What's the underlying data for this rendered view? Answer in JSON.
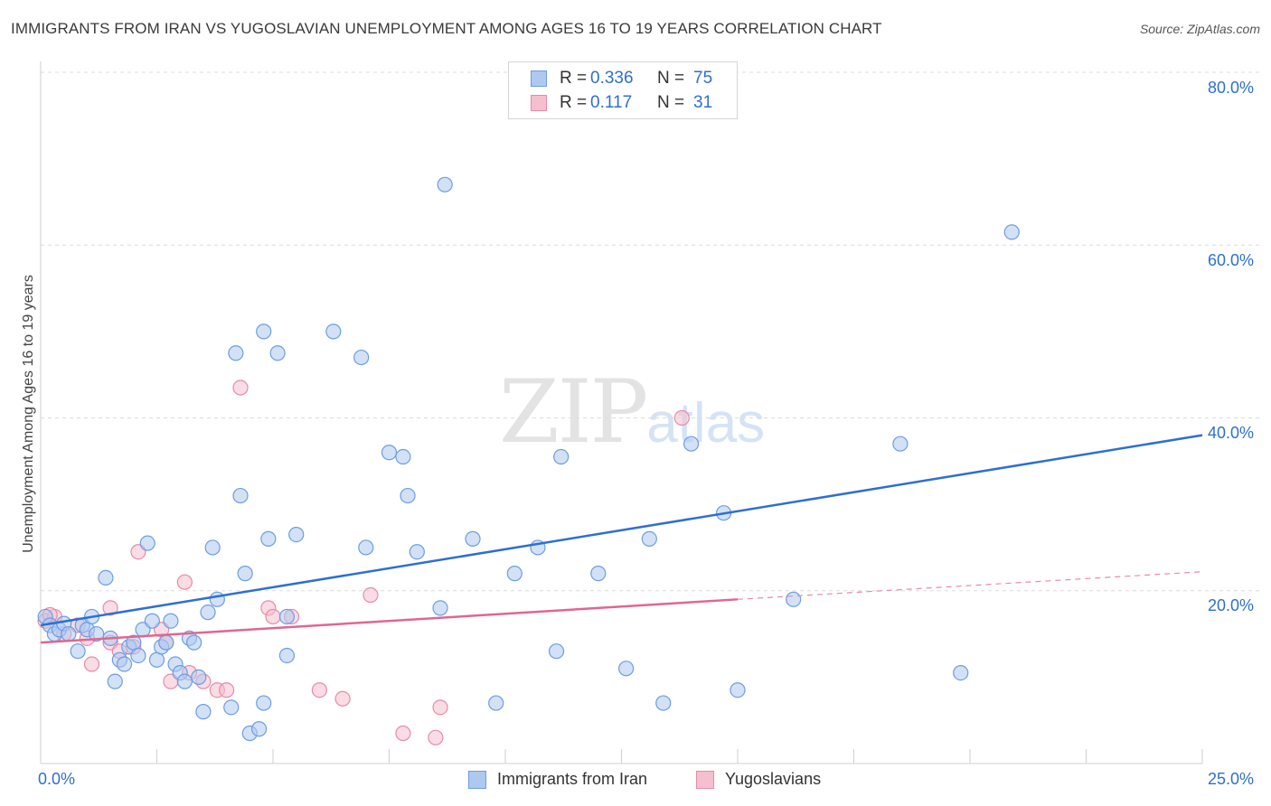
{
  "title": "IMMIGRANTS FROM IRAN VS YUGOSLAVIAN UNEMPLOYMENT AMONG AGES 16 TO 19 YEARS CORRELATION CHART",
  "source": "Source: ZipAtlas.com",
  "watermark": {
    "zip": "ZIP",
    "atlas": "atlas"
  },
  "colors": {
    "blue_fill": "#aec9f0",
    "blue_stroke": "#6b9ee0",
    "blue_line": "#2e6fd1",
    "pink_fill": "#f6bfd0",
    "pink_stroke": "#e88aa8",
    "pink_line": "#e2668f",
    "grid": "#dcdcdc",
    "axis_text": "#2e6fd1"
  },
  "legend": {
    "rows": [
      {
        "r_label": "R =",
        "r_value": "0.336",
        "n_label": "N =",
        "n_value": "75"
      },
      {
        "r_label": "R =",
        "r_value": "0.117",
        "n_label": "N =",
        "n_value": "31"
      }
    ]
  },
  "bottom_legend": {
    "series1": "Immigrants from Iran",
    "series2": "Yugoslavians"
  },
  "axis": {
    "x_min_label": "0.0%",
    "x_max_label": "25.0%",
    "y_tick_labels": [
      "80.0%",
      "60.0%",
      "40.0%",
      "20.0%"
    ]
  },
  "chart_data": {
    "type": "scatter",
    "title": "IMMIGRANTS FROM IRAN VS YUGOSLAVIAN UNEMPLOYMENT AMONG AGES 16 TO 19 YEARS CORRELATION CHART",
    "xlabel": "",
    "ylabel": "Unemployment Among Ages 16 to 19 years",
    "xlim": [
      0,
      25
    ],
    "ylim": [
      0,
      80
    ],
    "y_ticks": [
      20,
      40,
      60,
      80
    ],
    "series": [
      {
        "name": "Immigrants from Iran",
        "points": [
          [
            0.1,
            17.0
          ],
          [
            0.2,
            16.0
          ],
          [
            0.3,
            15.0
          ],
          [
            0.4,
            15.5
          ],
          [
            0.5,
            16.2
          ],
          [
            0.6,
            15.0
          ],
          [
            0.8,
            13.0
          ],
          [
            0.9,
            16.0
          ],
          [
            1.0,
            15.5
          ],
          [
            1.1,
            17.0
          ],
          [
            1.2,
            15.0
          ],
          [
            1.4,
            21.5
          ],
          [
            1.5,
            14.5
          ],
          [
            1.6,
            9.5
          ],
          [
            1.7,
            12.0
          ],
          [
            1.8,
            11.5
          ],
          [
            1.9,
            13.5
          ],
          [
            2.0,
            14.0
          ],
          [
            2.1,
            12.5
          ],
          [
            2.2,
            15.5
          ],
          [
            2.3,
            25.5
          ],
          [
            2.4,
            16.5
          ],
          [
            2.5,
            12.0
          ],
          [
            2.6,
            13.5
          ],
          [
            2.7,
            14.0
          ],
          [
            2.8,
            16.5
          ],
          [
            2.9,
            11.5
          ],
          [
            3.0,
            10.5
          ],
          [
            3.1,
            9.5
          ],
          [
            3.2,
            14.5
          ],
          [
            3.3,
            14.0
          ],
          [
            3.4,
            10.0
          ],
          [
            3.5,
            6.0
          ],
          [
            3.6,
            17.5
          ],
          [
            3.7,
            25.0
          ],
          [
            3.8,
            19.0
          ],
          [
            4.1,
            6.5
          ],
          [
            4.2,
            47.5
          ],
          [
            4.3,
            31.0
          ],
          [
            4.4,
            22.0
          ],
          [
            4.5,
            3.5
          ],
          [
            4.7,
            4.0
          ],
          [
            4.8,
            7.0
          ],
          [
            4.8,
            50.0
          ],
          [
            4.9,
            26.0
          ],
          [
            5.1,
            47.5
          ],
          [
            5.3,
            12.5
          ],
          [
            5.3,
            17.0
          ],
          [
            5.5,
            26.5
          ],
          [
            6.3,
            50.0
          ],
          [
            6.9,
            47.0
          ],
          [
            7.0,
            25.0
          ],
          [
            7.5,
            36.0
          ],
          [
            7.8,
            35.5
          ],
          [
            7.9,
            31.0
          ],
          [
            8.1,
            24.5
          ],
          [
            8.6,
            18.0
          ],
          [
            8.7,
            67.0
          ],
          [
            9.3,
            26.0
          ],
          [
            9.8,
            7.0
          ],
          [
            10.2,
            22.0
          ],
          [
            10.7,
            25.0
          ],
          [
            11.1,
            13.0
          ],
          [
            11.2,
            35.5
          ],
          [
            12.0,
            22.0
          ],
          [
            12.6,
            11.0
          ],
          [
            13.1,
            26.0
          ],
          [
            13.4,
            7.0
          ],
          [
            14.0,
            37.0
          ],
          [
            14.7,
            29.0
          ],
          [
            15.0,
            8.5
          ],
          [
            16.2,
            19.0
          ],
          [
            18.5,
            37.0
          ],
          [
            19.8,
            10.5
          ],
          [
            20.9,
            61.5
          ]
        ],
        "trend": [
          [
            0,
            16.0
          ],
          [
            25,
            38.0
          ]
        ]
      },
      {
        "name": "Yugoslavians",
        "points": [
          [
            0.1,
            16.5
          ],
          [
            0.3,
            17.0
          ],
          [
            0.5,
            15.0
          ],
          [
            0.8,
            16.0
          ],
          [
            1.0,
            14.5
          ],
          [
            1.1,
            11.5
          ],
          [
            1.5,
            14.0
          ],
          [
            1.5,
            18.0
          ],
          [
            1.7,
            13.0
          ],
          [
            2.0,
            13.5
          ],
          [
            2.1,
            24.5
          ],
          [
            2.6,
            15.5
          ],
          [
            2.7,
            14.0
          ],
          [
            2.8,
            9.5
          ],
          [
            3.1,
            21.0
          ],
          [
            3.2,
            10.5
          ],
          [
            3.5,
            9.5
          ],
          [
            3.8,
            8.5
          ],
          [
            4.0,
            8.5
          ],
          [
            4.3,
            43.5
          ],
          [
            4.9,
            18.0
          ],
          [
            5.0,
            17.0
          ],
          [
            5.4,
            17.0
          ],
          [
            6.0,
            8.5
          ],
          [
            6.5,
            7.5
          ],
          [
            7.1,
            19.5
          ],
          [
            7.8,
            3.5
          ],
          [
            8.5,
            3.0
          ],
          [
            8.6,
            6.5
          ],
          [
            13.8,
            40.0
          ],
          [
            0.2,
            17.2
          ]
        ],
        "trend": [
          [
            0,
            14.0
          ],
          [
            15,
            19.0
          ]
        ],
        "trend_dashed_extension": [
          [
            15,
            19.0
          ],
          [
            25,
            22.2
          ]
        ]
      }
    ]
  }
}
